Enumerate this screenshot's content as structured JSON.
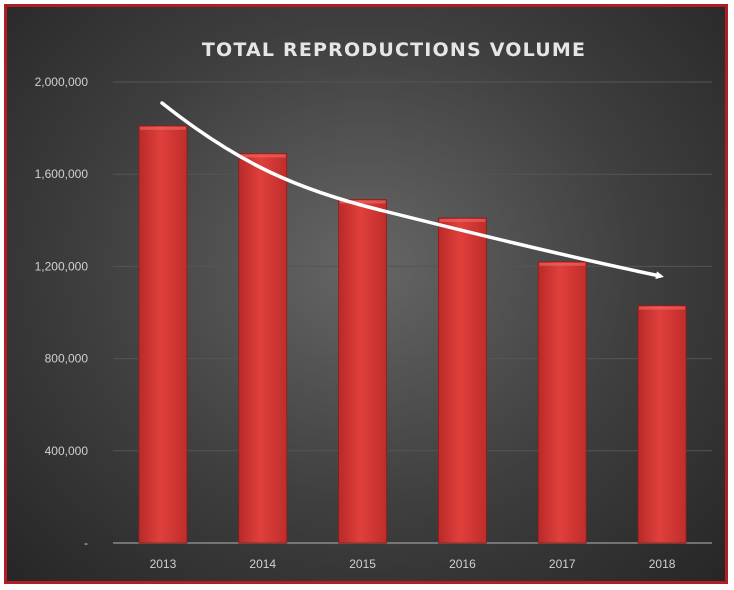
{
  "chart_data": {
    "type": "bar",
    "title": "TOTAL REPRODUCTIONS VOLUME",
    "categories": [
      "2013",
      "2014",
      "2015",
      "2016",
      "2017",
      "2018"
    ],
    "values": [
      1810000,
      1690000,
      1490000,
      1410000,
      1220000,
      1030000
    ],
    "ylim": [
      0,
      2000000
    ],
    "yticks": [
      0,
      400000,
      800000,
      1200000,
      1600000,
      2000000
    ],
    "ytick_labels": [
      "-",
      "400,000",
      "800,000",
      "1,200,000",
      "1,600,000",
      "2,000,000"
    ],
    "grid": true,
    "trend_arrow": true,
    "colors": {
      "bar": "#d63a37",
      "border": "#b01e23",
      "arrow": "#ffffff"
    }
  }
}
